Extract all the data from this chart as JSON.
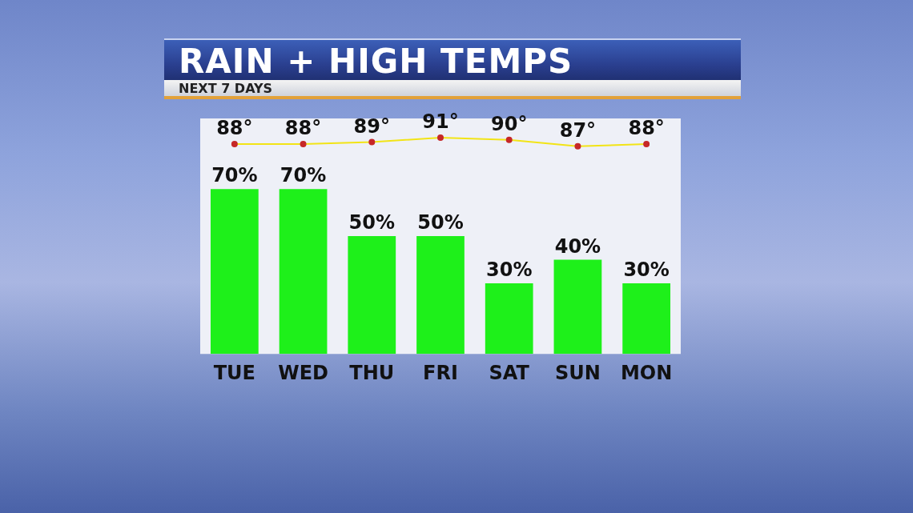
{
  "chart_data": {
    "type": "bar",
    "title": "RAIN + HIGH TEMPS",
    "subtitle": "NEXT 7 DAYS",
    "categories": [
      "TUE",
      "WED",
      "THU",
      "FRI",
      "SAT",
      "SUN",
      "MON"
    ],
    "series": [
      {
        "color": "#1ef01a",
        "values": [
          70,
          70,
          50,
          50,
          30,
          40,
          30
        ],
        "value_labels": [
          "70%",
          "70%",
          "50%",
          "50%",
          "30%",
          "40%",
          "30%"
        ]
      },
      {
        "type": "line",
        "axis": "y2",
        "color": "#f2e416",
        "values": [
          88,
          88,
          89,
          91,
          90,
          87,
          88
        ],
        "value_labels": [
          "88°",
          "88°",
          "89°",
          "91°",
          "90°",
          "87°",
          "88°"
        ]
      }
    ],
    "ylim": [
      0,
      100
    ],
    "y2lim": [
      -10,
      100
    ],
    "tick_labels": "x",
    "grid": false,
    "legend": false,
    "marker": "circle"
  }
}
